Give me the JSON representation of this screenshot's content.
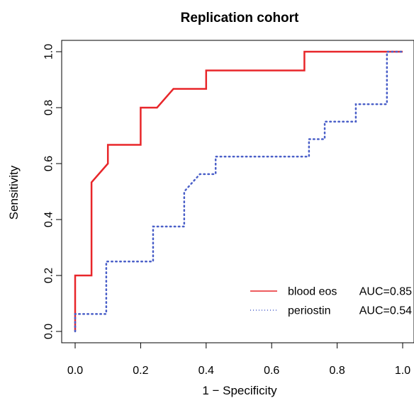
{
  "chart_data": {
    "type": "line",
    "title": "Replication cohort",
    "xlabel": "1 − Specificity",
    "ylabel": "Sensitivity",
    "xlim": [
      0,
      1
    ],
    "ylim": [
      0,
      1
    ],
    "xticks": [
      "0.0",
      "0.2",
      "0.4",
      "0.6",
      "0.8",
      "1.0"
    ],
    "yticks": [
      "0.0",
      "0.2",
      "0.4",
      "0.6",
      "0.8",
      "1.0"
    ],
    "legend_position": "bottom-right",
    "series": [
      {
        "name": "blood eos",
        "legend_label": "blood eos",
        "legend_auc": "AUC=0.85",
        "color": "#e8262a",
        "line_style": "solid",
        "x": [
          0,
          0,
          0.05,
          0.05,
          0.05,
          0.1,
          0.1,
          0.2,
          0.2,
          0.25,
          0.3,
          0.4,
          0.4,
          0.7,
          0.7,
          1.0
        ],
        "y": [
          0,
          0.2,
          0.2,
          0.533,
          0.533,
          0.6,
          0.667,
          0.667,
          0.8,
          0.8,
          0.867,
          0.867,
          0.933,
          0.933,
          1.0,
          1.0
        ]
      },
      {
        "name": "periostin",
        "legend_label": "periostin",
        "legend_auc": "AUC=0.54",
        "color": "#4a5fc8",
        "line_style": "dotted",
        "x": [
          0,
          0,
          0.095,
          0.095,
          0.238,
          0.238,
          0.333,
          0.333,
          0.381,
          0.429,
          0.429,
          0.714,
          0.714,
          0.762,
          0.762,
          0.857,
          0.857,
          0.952,
          0.952,
          1.0
        ],
        "y": [
          0,
          0.0625,
          0.0625,
          0.25,
          0.25,
          0.375,
          0.375,
          0.5,
          0.5625,
          0.5625,
          0.625,
          0.625,
          0.6875,
          0.6875,
          0.75,
          0.75,
          0.8125,
          0.8125,
          1.0,
          1.0
        ]
      }
    ]
  }
}
